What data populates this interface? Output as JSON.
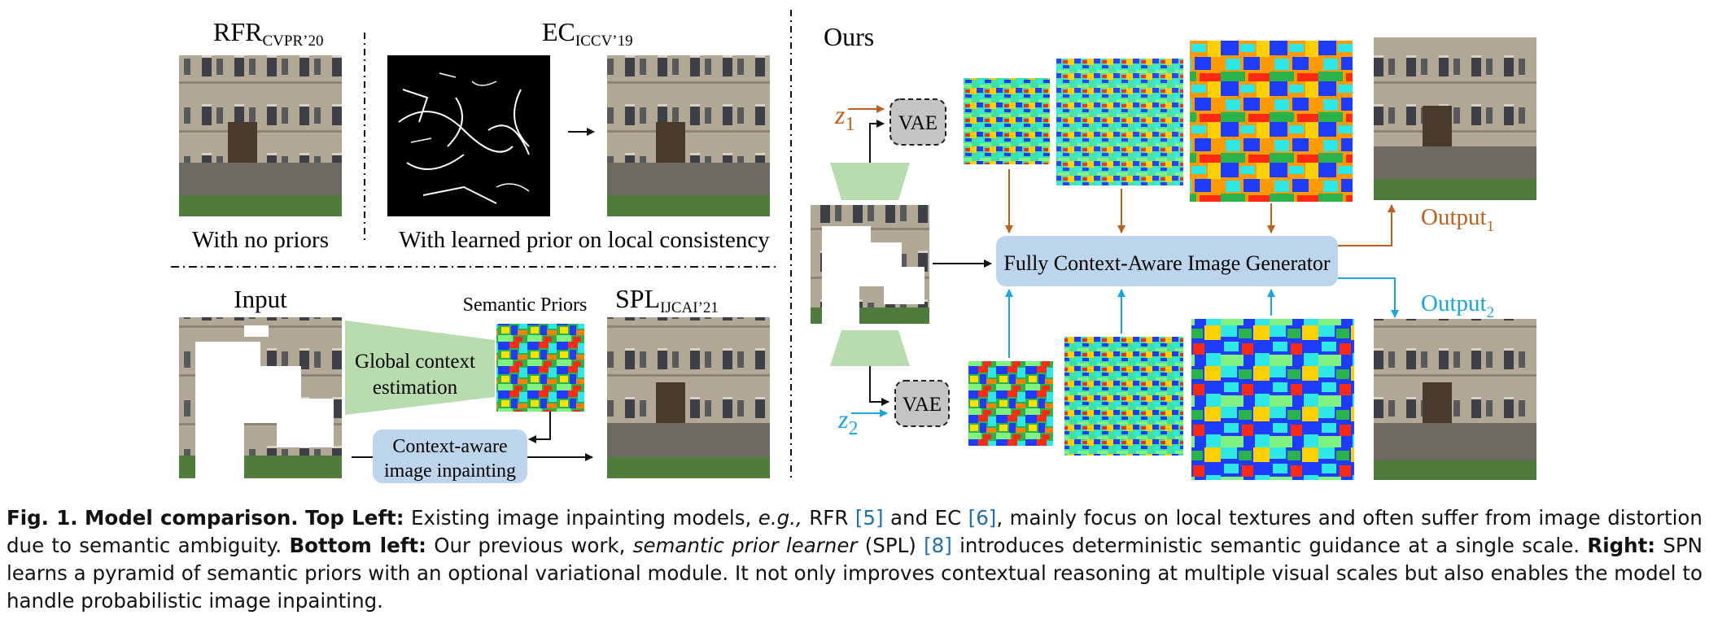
{
  "figure": {
    "top_left": {
      "rfr_label": "RFR",
      "rfr_sub": "CVPR’20",
      "ec_label": "EC",
      "ec_sub": "ICCV’19",
      "caption_no_priors": "With no priors",
      "caption_learned_prior": "With learned prior on local consistency"
    },
    "bottom_left": {
      "input_label": "Input",
      "semantic_priors_label": "Semantic Priors",
      "spl_label": "SPL",
      "spl_sub": "IJCAI’21",
      "global_context_line1": "Global context",
      "global_context_line2": "estimation",
      "context_aware_line1": "Context-aware",
      "context_aware_line2": "image inpainting"
    },
    "right": {
      "ours_label": "Ours",
      "z1": "z",
      "z1_sub": "1",
      "z2": "z",
      "z2_sub": "2",
      "vae_top": "VAE",
      "vae_bottom": "VAE",
      "generator_label": "Fully Context-Aware Image Generator",
      "output1": "Output",
      "output1_sub": "1",
      "output2": "Output",
      "output2_sub": "2"
    },
    "colors": {
      "orange": "#c0601c",
      "blue": "#1aa7e0",
      "generator_fill": "#bcd5ec",
      "trapezoid_green": "#b9dcae",
      "vae_gray": "#c4c4c4"
    }
  },
  "caption": {
    "fig_label": "Fig. 1.",
    "title": "Model comparison.",
    "top_left_label": "Top Left:",
    "text1": "Existing image inpainting models,",
    "eg": "e.g.,",
    "text2": "RFR",
    "ref5": "[5]",
    "text3": "and EC",
    "ref6": "[6]",
    "text4": ", mainly focus on local textures and often suffer from image distortion due to semantic ambiguity.",
    "bottom_left_label": "Bottom left:",
    "text5": "Our previous work,",
    "spl_italic": "semantic prior learner",
    "text6": "(SPL)",
    "ref8": "[8]",
    "text7": "introduces deterministic semantic guidance at a single scale.",
    "right_label": "Right:",
    "text8": "SPN learns a pyramid of semantic priors with an optional variational module. It not only improves contextual reasoning at multiple visual scales but also enables the model to handle probabilistic image inpainting."
  }
}
